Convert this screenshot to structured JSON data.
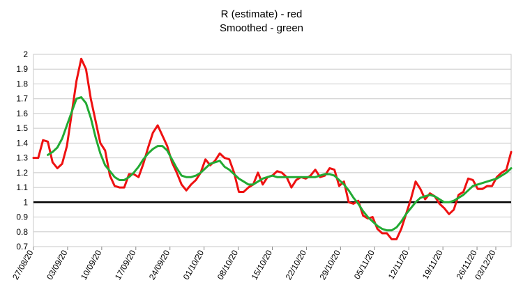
{
  "chart_data": {
    "type": "line",
    "title": "R (estimate) - red",
    "subtitle": "Smoothed - green",
    "ylim": [
      0.7,
      2.0
    ],
    "yticks": [
      "0.7",
      "0.8",
      "0.9",
      "1",
      "1.1",
      "1.2",
      "1.3",
      "1.4",
      "1.5",
      "1.6",
      "1.7",
      "1.8",
      "1.9",
      "2"
    ],
    "x_tick_labels": [
      "27/08/20",
      "03/09/20",
      "10/09/20",
      "17/09/20",
      "24/09/20",
      "01/10/20",
      "08/10/20",
      "15/10/20",
      "22/10/20",
      "29/10/20",
      "05/11/20",
      "12/11/20",
      "19/11/20",
      "26/11/20",
      "03/12/20"
    ],
    "x_start": "27/08/20",
    "x_end": "03/12/20",
    "reference_line": 1,
    "grid": true,
    "colors": {
      "raw": "#ee1111",
      "smoothed": "#22aa33",
      "reference": "#000000",
      "grid": "#c8c8c8"
    },
    "series": [
      {
        "values": [
          1.3,
          1.3,
          1.42,
          1.41,
          1.27,
          1.23,
          1.26,
          1.38,
          1.6,
          1.82,
          1.97,
          1.9,
          1.7,
          1.55,
          1.4,
          1.35,
          1.18,
          1.11,
          1.1,
          1.1,
          1.19,
          1.19,
          1.17,
          1.26,
          1.37,
          1.47,
          1.52,
          1.45,
          1.38,
          1.27,
          1.2,
          1.12,
          1.08,
          1.12,
          1.15,
          1.2,
          1.29,
          1.25,
          1.28,
          1.33,
          1.3,
          1.29,
          1.2,
          1.07,
          1.07,
          1.1,
          1.12,
          1.2,
          1.12,
          1.17,
          1.18,
          1.21,
          1.2,
          1.17,
          1.1,
          1.15,
          1.17,
          1.16,
          1.18,
          1.22,
          1.17,
          1.18,
          1.23,
          1.22,
          1.11,
          1.14,
          1.0,
          0.99,
          1.01,
          0.91,
          0.89,
          0.9,
          0.82,
          0.79,
          0.79,
          0.75,
          0.75,
          0.82,
          0.92,
          1.02,
          1.14,
          1.09,
          1.02,
          1.06,
          1.04,
          0.99,
          0.96,
          0.92,
          0.95,
          1.05,
          1.07,
          1.16,
          1.15,
          1.09,
          1.09,
          1.11,
          1.11,
          1.17,
          1.2,
          1.22,
          1.34
        ]
      },
      {
        "values": [
          null,
          null,
          null,
          1.32,
          1.34,
          1.37,
          1.43,
          1.52,
          1.61,
          1.7,
          1.71,
          1.67,
          1.57,
          1.44,
          1.33,
          1.25,
          1.21,
          1.17,
          1.15,
          1.15,
          1.17,
          1.2,
          1.24,
          1.29,
          1.33,
          1.36,
          1.38,
          1.38,
          1.35,
          1.29,
          1.23,
          1.18,
          1.17,
          1.17,
          1.18,
          1.2,
          1.23,
          1.26,
          1.27,
          1.28,
          1.24,
          1.22,
          1.19,
          1.16,
          1.14,
          1.12,
          1.12,
          1.14,
          1.16,
          1.17,
          1.18,
          1.17,
          1.17,
          1.17,
          1.17,
          1.17,
          1.17,
          1.17,
          1.17,
          1.17,
          1.18,
          1.19,
          1.19,
          1.18,
          1.15,
          1.12,
          1.08,
          1.03,
          0.99,
          0.94,
          0.9,
          0.87,
          0.84,
          0.82,
          0.81,
          0.81,
          0.83,
          0.87,
          0.92,
          0.96,
          1.0,
          1.03,
          1.04,
          1.05,
          1.04,
          1.02,
          1.0,
          1.0,
          1.01,
          1.03,
          1.05,
          1.08,
          1.11,
          1.12,
          1.13,
          1.14,
          1.15,
          1.16,
          1.18,
          1.2,
          1.23
        ]
      }
    ]
  }
}
